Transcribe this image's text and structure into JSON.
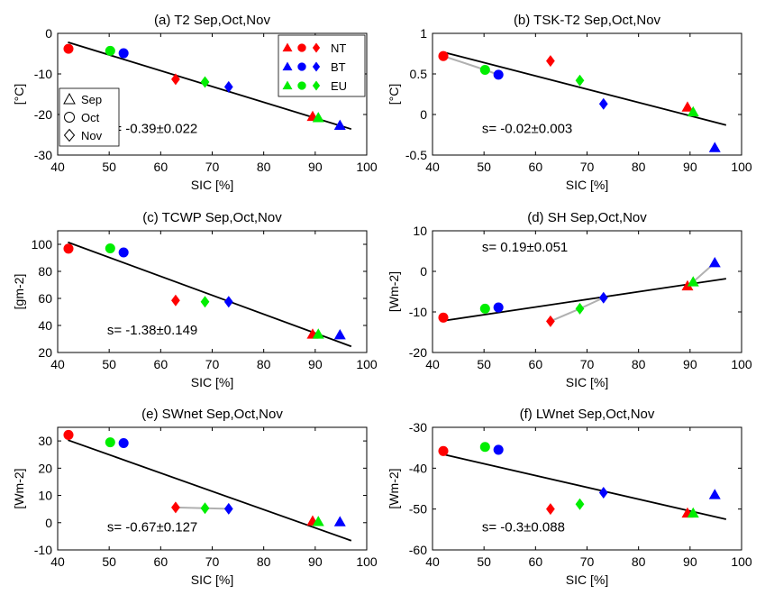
{
  "colors": {
    "NT": "#ff0000",
    "BT": "#0000ff",
    "EU": "#00ee00",
    "fit": "#000000",
    "connector": "#b0b0b0"
  },
  "legend": {
    "series": [
      "NT",
      "BT",
      "EU"
    ],
    "months": [
      "Sep",
      "Oct",
      "Nov"
    ],
    "marker_shapes": {
      "Sep": "triangle",
      "Oct": "circle",
      "Nov": "diamond"
    }
  },
  "chart_data": [
    {
      "type": "scatter",
      "title": "(a) T2 Sep,Oct,Nov",
      "xlabel": "SIC [%]",
      "ylabel": "[°C]",
      "xlim": [
        40,
        100
      ],
      "ylim": [
        -30,
        0
      ],
      "xticks": [
        40,
        50,
        60,
        70,
        80,
        90,
        100
      ],
      "yticks": [
        -30,
        -20,
        -10,
        0
      ],
      "annotation": "s= -0.39±0.022",
      "fit_line": [
        [
          42,
          -2.2
        ],
        [
          97,
          -23.6
        ]
      ],
      "connectors": [],
      "legend": true,
      "points": [
        {
          "series": "NT",
          "month": "Sep",
          "x": 89.5,
          "y": -20.5
        },
        {
          "series": "NT",
          "month": "Oct",
          "x": 42.1,
          "y": -3.8
        },
        {
          "series": "NT",
          "month": "Nov",
          "x": 62.9,
          "y": -11.3
        },
        {
          "series": "BT",
          "month": "Sep",
          "x": 94.8,
          "y": -22.7
        },
        {
          "series": "BT",
          "month": "Oct",
          "x": 52.8,
          "y": -4.9
        },
        {
          "series": "BT",
          "month": "Nov",
          "x": 73.2,
          "y": -13.2
        },
        {
          "series": "EU",
          "month": "Sep",
          "x": 90.6,
          "y": -20.8
        },
        {
          "series": "EU",
          "month": "Oct",
          "x": 50.2,
          "y": -4.3
        },
        {
          "series": "EU",
          "month": "Nov",
          "x": 68.6,
          "y": -12.0
        }
      ]
    },
    {
      "type": "scatter",
      "title": "(b) TSK-T2 Sep,Oct,Nov",
      "xlabel": "SIC [%]",
      "ylabel": "[°C]",
      "xlim": [
        40,
        100
      ],
      "ylim": [
        -0.5,
        1
      ],
      "xticks": [
        40,
        50,
        60,
        70,
        80,
        90,
        100
      ],
      "yticks": [
        -0.5,
        0,
        0.5,
        1
      ],
      "annotation": "s= -0.02±0.003",
      "fit_line": [
        [
          42,
          0.77
        ],
        [
          97,
          -0.13
        ]
      ],
      "connectors": [
        [
          [
            42.1,
            0.72
          ],
          [
            50.2,
            0.55
          ],
          [
            52.8,
            0.49
          ]
        ]
      ],
      "legend": false,
      "points": [
        {
          "series": "NT",
          "month": "Sep",
          "x": 89.5,
          "y": 0.09
        },
        {
          "series": "NT",
          "month": "Oct",
          "x": 42.1,
          "y": 0.72
        },
        {
          "series": "NT",
          "month": "Nov",
          "x": 62.9,
          "y": 0.66
        },
        {
          "series": "BT",
          "month": "Sep",
          "x": 94.8,
          "y": -0.41
        },
        {
          "series": "BT",
          "month": "Oct",
          "x": 52.8,
          "y": 0.49
        },
        {
          "series": "BT",
          "month": "Nov",
          "x": 73.2,
          "y": 0.13
        },
        {
          "series": "EU",
          "month": "Sep",
          "x": 90.6,
          "y": 0.03
        },
        {
          "series": "EU",
          "month": "Oct",
          "x": 50.2,
          "y": 0.55
        },
        {
          "series": "EU",
          "month": "Nov",
          "x": 68.6,
          "y": 0.42
        }
      ]
    },
    {
      "type": "scatter",
      "title": "(c) TCWP Sep,Oct,Nov",
      "xlabel": "SIC [%]",
      "ylabel": "[gm-2]",
      "xlim": [
        40,
        100
      ],
      "ylim": [
        20,
        110
      ],
      "xticks": [
        40,
        50,
        60,
        70,
        80,
        90,
        100
      ],
      "yticks": [
        20,
        40,
        60,
        80,
        100
      ],
      "annotation": "s= -1.38±0.149",
      "fit_line": [
        [
          42,
          101.5
        ],
        [
          97,
          24.5
        ]
      ],
      "connectors": [],
      "legend": false,
      "points": [
        {
          "series": "NT",
          "month": "Sep",
          "x": 89.5,
          "y": 33.5
        },
        {
          "series": "NT",
          "month": "Oct",
          "x": 42.1,
          "y": 96.8
        },
        {
          "series": "NT",
          "month": "Nov",
          "x": 62.9,
          "y": 58.5
        },
        {
          "series": "BT",
          "month": "Sep",
          "x": 94.8,
          "y": 33.0
        },
        {
          "series": "BT",
          "month": "Oct",
          "x": 52.8,
          "y": 94.0
        },
        {
          "series": "BT",
          "month": "Nov",
          "x": 73.2,
          "y": 57.5
        },
        {
          "series": "EU",
          "month": "Sep",
          "x": 90.6,
          "y": 33.5
        },
        {
          "series": "EU",
          "month": "Oct",
          "x": 50.2,
          "y": 97.0
        },
        {
          "series": "EU",
          "month": "Nov",
          "x": 68.6,
          "y": 57.5
        }
      ]
    },
    {
      "type": "scatter",
      "title": "(d) SH Sep,Oct,Nov",
      "xlabel": "SIC [%]",
      "ylabel": "[Wm-2]",
      "xlim": [
        40,
        100
      ],
      "ylim": [
        -20,
        10
      ],
      "xticks": [
        40,
        50,
        60,
        70,
        80,
        90,
        100
      ],
      "yticks": [
        -20,
        -10,
        0,
        10
      ],
      "annotation": "s= 0.19±0.051",
      "fit_line": [
        [
          42,
          -12.2
        ],
        [
          97,
          -1.8
        ]
      ],
      "connectors": [
        [
          [
            62.9,
            -12.3
          ],
          [
            68.6,
            -9.2
          ],
          [
            73.2,
            -6.5
          ]
        ],
        [
          [
            89.5,
            -3.6
          ],
          [
            90.6,
            -2.6
          ],
          [
            94.8,
            2.1
          ]
        ]
      ],
      "legend": false,
      "points": [
        {
          "series": "NT",
          "month": "Sep",
          "x": 89.5,
          "y": -3.6
        },
        {
          "series": "NT",
          "month": "Oct",
          "x": 42.1,
          "y": -11.4
        },
        {
          "series": "NT",
          "month": "Nov",
          "x": 62.9,
          "y": -12.3
        },
        {
          "series": "BT",
          "month": "Sep",
          "x": 94.8,
          "y": 2.1
        },
        {
          "series": "BT",
          "month": "Oct",
          "x": 52.8,
          "y": -8.9
        },
        {
          "series": "BT",
          "month": "Nov",
          "x": 73.2,
          "y": -6.5
        },
        {
          "series": "EU",
          "month": "Sep",
          "x": 90.6,
          "y": -2.6
        },
        {
          "series": "EU",
          "month": "Oct",
          "x": 50.2,
          "y": -9.2
        },
        {
          "series": "EU",
          "month": "Nov",
          "x": 68.6,
          "y": -9.2
        }
      ]
    },
    {
      "type": "scatter",
      "title": "(e) SWnet Sep,Oct,Nov",
      "xlabel": "SIC [%]",
      "ylabel": "[Wm-2]",
      "xlim": [
        40,
        100
      ],
      "ylim": [
        -10,
        35
      ],
      "xticks": [
        40,
        50,
        60,
        70,
        80,
        90,
        100
      ],
      "yticks": [
        -10,
        0,
        10,
        20,
        30
      ],
      "annotation": "s= -0.67±0.127",
      "fit_line": [
        [
          42,
          30.3
        ],
        [
          97,
          -6.6
        ]
      ],
      "connectors": [
        [
          [
            62.9,
            5.6
          ],
          [
            68.6,
            5.3
          ],
          [
            73.2,
            5.1
          ]
        ]
      ],
      "legend": false,
      "points": [
        {
          "series": "NT",
          "month": "Sep",
          "x": 89.5,
          "y": 0.6
        },
        {
          "series": "NT",
          "month": "Oct",
          "x": 42.1,
          "y": 32.2
        },
        {
          "series": "NT",
          "month": "Nov",
          "x": 62.9,
          "y": 5.6
        },
        {
          "series": "BT",
          "month": "Sep",
          "x": 94.8,
          "y": 0.3
        },
        {
          "series": "BT",
          "month": "Oct",
          "x": 52.8,
          "y": 29.2
        },
        {
          "series": "BT",
          "month": "Nov",
          "x": 73.2,
          "y": 5.1
        },
        {
          "series": "EU",
          "month": "Sep",
          "x": 90.6,
          "y": 0.4
        },
        {
          "series": "EU",
          "month": "Oct",
          "x": 50.2,
          "y": 29.5
        },
        {
          "series": "EU",
          "month": "Nov",
          "x": 68.6,
          "y": 5.3
        }
      ]
    },
    {
      "type": "scatter",
      "title": "(f) LWnet Sep,Oct,Nov",
      "xlabel": "SIC [%]",
      "ylabel": "[Wm-2]",
      "xlim": [
        40,
        100
      ],
      "ylim": [
        -60,
        -30
      ],
      "xticks": [
        40,
        50,
        60,
        70,
        80,
        90,
        100
      ],
      "yticks": [
        -60,
        -50,
        -40,
        -30
      ],
      "annotation": "s= -0.3±0.088",
      "fit_line": [
        [
          42,
          -36.6
        ],
        [
          97,
          -52.5
        ]
      ],
      "connectors": [],
      "legend": false,
      "points": [
        {
          "series": "NT",
          "month": "Sep",
          "x": 89.5,
          "y": -51.0
        },
        {
          "series": "NT",
          "month": "Oct",
          "x": 42.1,
          "y": -35.8
        },
        {
          "series": "NT",
          "month": "Nov",
          "x": 62.9,
          "y": -50.0
        },
        {
          "series": "BT",
          "month": "Sep",
          "x": 94.8,
          "y": -46.5
        },
        {
          "series": "BT",
          "month": "Oct",
          "x": 52.8,
          "y": -35.5
        },
        {
          "series": "BT",
          "month": "Nov",
          "x": 73.2,
          "y": -46.0
        },
        {
          "series": "EU",
          "month": "Sep",
          "x": 90.6,
          "y": -51.0
        },
        {
          "series": "EU",
          "month": "Oct",
          "x": 50.2,
          "y": -34.8
        },
        {
          "series": "EU",
          "month": "Nov",
          "x": 68.6,
          "y": -48.8
        }
      ]
    }
  ]
}
